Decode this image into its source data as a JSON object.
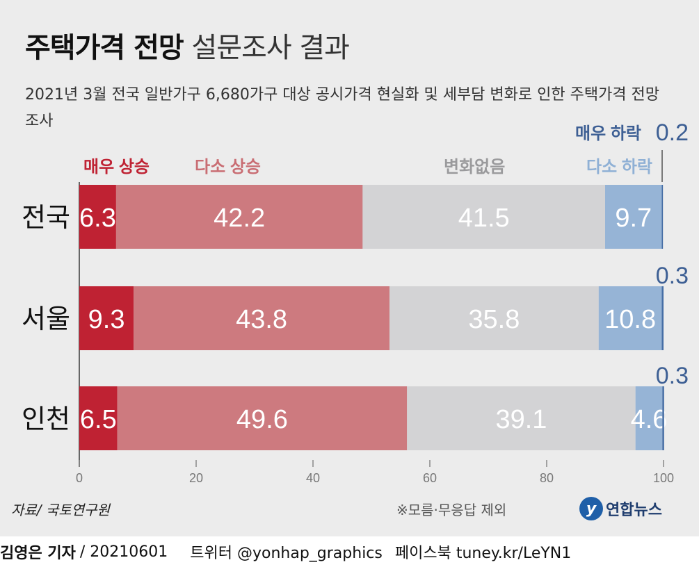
{
  "title": {
    "bold": "주택가격 전망",
    "light": "설문조사 결과"
  },
  "subtitle": "2021년 3월 전국 일반가구 6,680가구 대상 공시가격 현실화 및 세부담 변화로 인한 주택가격 전망 조사",
  "chart_data": {
    "type": "bar",
    "orientation": "horizontal",
    "stacked": true,
    "categories": [
      "전국",
      "서울",
      "인천"
    ],
    "series": [
      {
        "name": "매우 상승",
        "color": "#bf2233",
        "values": [
          6.3,
          9.3,
          6.5
        ]
      },
      {
        "name": "다소 상승",
        "color": "#cd7a7f",
        "values": [
          42.2,
          43.8,
          49.6
        ]
      },
      {
        "name": "변화없음",
        "color": "#d3d3d5",
        "values": [
          41.5,
          35.8,
          39.1
        ]
      },
      {
        "name": "다소 하락",
        "color": "#96b4d6",
        "values": [
          9.7,
          10.8,
          4.6
        ]
      },
      {
        "name": "매우 하락",
        "color": "#466ea5",
        "values": [
          0.2,
          0.3,
          0.3
        ]
      }
    ],
    "small_labels": [
      "0.2",
      "0.3",
      "0.3"
    ],
    "xlim": [
      0,
      100
    ],
    "xticks": [
      "0",
      "20",
      "40",
      "60",
      "80",
      "100"
    ],
    "legend_placement": "top",
    "label_colors": {
      "매우 상승": "#bf2233",
      "다소 상승": "#c96d73",
      "변화없음": "#9a9a9c",
      "다소 하락": "#8fb0d5",
      "매우 하락": "#3d5f94"
    }
  },
  "footer": {
    "source": "자료/ 국토연구원",
    "note": "※모름·무응답 제외",
    "logo_mark": "y",
    "logo_text": "연합뉴스",
    "reporter": "김영은 기자",
    "date": "/ 20210601",
    "twitter": "트위터 @yonhap_graphics",
    "facebook": "페이스북 tuney.kr/LeYN1"
  }
}
